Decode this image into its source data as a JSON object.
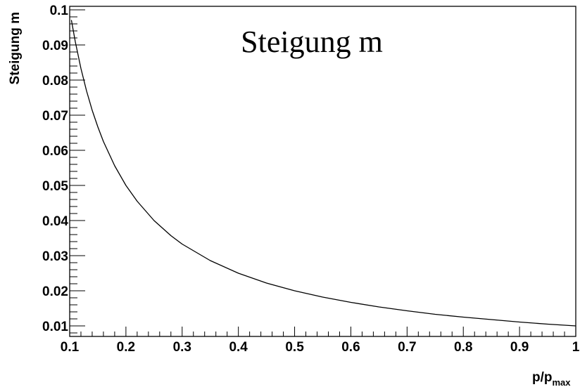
{
  "chart_data": {
    "type": "line",
    "title": "Steigung m",
    "xlabel_main": "p/p",
    "xlabel_sub": "max",
    "ylabel": "Steigung m",
    "xlim": [
      0.1,
      1.0
    ],
    "ylim": [
      0.007,
      0.101
    ],
    "x_ticks": [
      {
        "value": 0.1,
        "label": "0.1"
      },
      {
        "value": 0.2,
        "label": "0.2"
      },
      {
        "value": 0.3,
        "label": "0.3"
      },
      {
        "value": 0.4,
        "label": "0.4"
      },
      {
        "value": 0.5,
        "label": "0.5"
      },
      {
        "value": 0.6,
        "label": "0.6"
      },
      {
        "value": 0.7,
        "label": "0.7"
      },
      {
        "value": 0.8,
        "label": "0.8"
      },
      {
        "value": 0.9,
        "label": "0.9"
      },
      {
        "value": 1.0,
        "label": "1"
      }
    ],
    "y_ticks": [
      {
        "value": 0.01,
        "label": "0.01"
      },
      {
        "value": 0.02,
        "label": "0.02"
      },
      {
        "value": 0.03,
        "label": "0.03"
      },
      {
        "value": 0.04,
        "label": "0.04"
      },
      {
        "value": 0.05,
        "label": "0.05"
      },
      {
        "value": 0.06,
        "label": "0.06"
      },
      {
        "value": 0.07,
        "label": "0.07"
      },
      {
        "value": 0.08,
        "label": "0.08"
      },
      {
        "value": 0.09,
        "label": "0.09"
      },
      {
        "value": 0.1,
        "label": "0.1"
      }
    ],
    "grid": false,
    "series": [
      {
        "x": [
          0.103,
          0.11,
          0.12,
          0.13,
          0.14,
          0.15,
          0.16,
          0.18,
          0.2,
          0.22,
          0.25,
          0.28,
          0.3,
          0.35,
          0.4,
          0.45,
          0.5,
          0.55,
          0.6,
          0.65,
          0.7,
          0.75,
          0.8,
          0.85,
          0.9,
          0.95,
          1.0
        ],
        "y": [
          0.0971,
          0.0909,
          0.0833,
          0.0769,
          0.0714,
          0.0667,
          0.0625,
          0.0556,
          0.05,
          0.0455,
          0.04,
          0.0357,
          0.0333,
          0.0286,
          0.025,
          0.0222,
          0.02,
          0.0182,
          0.0167,
          0.0154,
          0.0143,
          0.0133,
          0.0125,
          0.0118,
          0.0111,
          0.0105,
          0.01
        ]
      }
    ]
  },
  "colors": {
    "background": "#ffffff",
    "axis": "#000000",
    "line": "#000000"
  }
}
